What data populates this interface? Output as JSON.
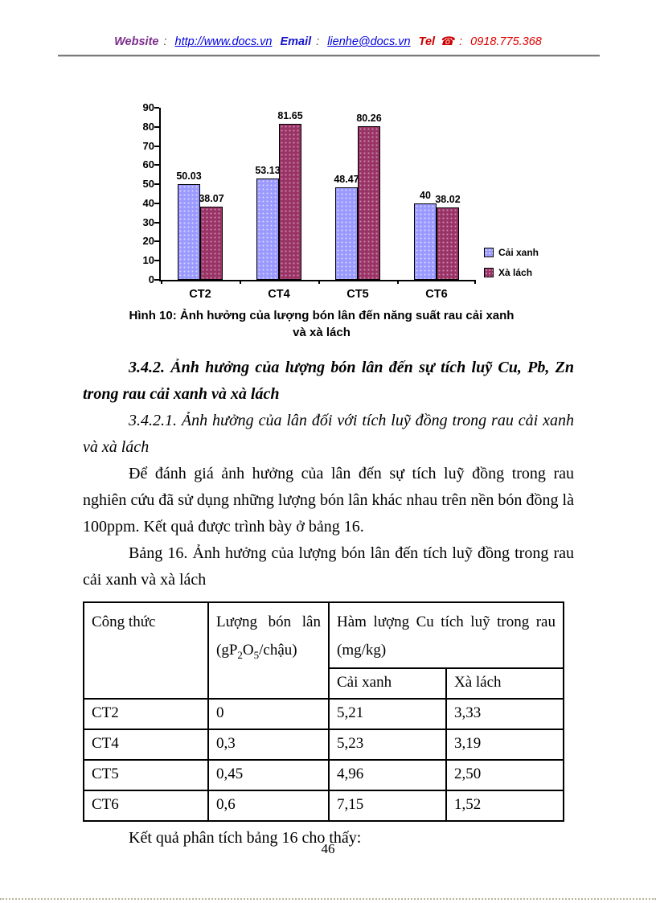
{
  "header": {
    "website_label": "Website",
    "sep1": ":",
    "website_url": "http://www.docs.vn",
    "email_label": "Email",
    "sep2": ":",
    "email_value": "lienhe@docs.vn",
    "tel_label": "Tel",
    "phone_icon": "☎",
    "sep3": ":",
    "tel_number": "0918.775.368"
  },
  "chart_data": {
    "type": "bar",
    "categories": [
      "CT2",
      "CT4",
      "CT5",
      "CT6"
    ],
    "series": [
      {
        "name": "Cải xanh",
        "color": "#9999FF",
        "dot_color": "#d4d4ff",
        "values": [
          50.03,
          53.13,
          48.47,
          40
        ],
        "value_labels": [
          "50.03",
          "53.13",
          "48.47",
          "40"
        ]
      },
      {
        "name": "Xà lách",
        "color": "#993366",
        "dot_color": "#c98aab",
        "values": [
          38.07,
          81.65,
          80.26,
          38.02
        ],
        "value_labels": [
          "38.07",
          "81.65",
          "80.26",
          "38.02"
        ]
      }
    ],
    "title": "",
    "xlabel": "",
    "ylabel": "",
    "ylim": [
      0,
      90
    ],
    "ytick_step": 10,
    "grid": false,
    "legend_position": "right"
  },
  "figure": {
    "caption": "Hình 10: Ảnh hưởng của lượng bón lân đến năng suất rau cải xanh và xà lách"
  },
  "content": {
    "heading_342": "3.4.2. Ảnh hưởng của lượng bón lân đến sự tích luỹ Cu, Pb, Zn trong rau cải xanh và xà lách",
    "heading_3421": "3.4.2.1. Ảnh hưởng của lân đối với tích luỹ đồng trong rau cải xanh và xà lách",
    "para_intro": "Để đánh giá ảnh hưởng của lân đến sự tích luỹ đồng trong rau nghiên cứu đã sử dụng những lượng bón lân khác nhau trên nền bón đồng là 100ppm. Kết quả được trình bày ở bảng 16.",
    "table_caption": "Bảng 16. Ảnh hưởng của lượng bón lân đến tích luỹ đồng trong rau cải xanh và xà lách",
    "para_conclusion": "Kết quả phân tích bảng 16 cho thấy:"
  },
  "table": {
    "header": {
      "col1": "Công thức",
      "col2_line1": "Lượng bón lân",
      "col2_formula": {
        "p1": "(gP",
        "s1": "2",
        "p2": "O",
        "s2": "5",
        "p3": "/chậu)"
      },
      "col3_line1": "Hàm lượng Cu tích luỹ trong rau",
      "col3_line2": "(mg/kg)",
      "sub1": "Cải xanh",
      "sub2": "Xà lách"
    },
    "rows": [
      [
        "CT2",
        "0",
        "5,21",
        "3,33"
      ],
      [
        "CT4",
        "0,3",
        "5,23",
        "3,19"
      ],
      [
        "CT5",
        "0,45",
        "4,96",
        "2,50"
      ],
      [
        "CT6",
        "0,6",
        "7,15",
        "1,52"
      ]
    ]
  },
  "footer": {
    "page_number": "46"
  }
}
